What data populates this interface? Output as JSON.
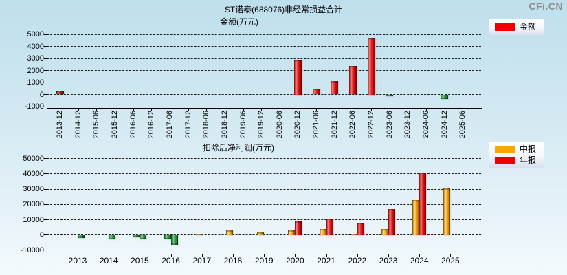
{
  "watermark": "CFi.CN",
  "chart_data": [
    {
      "type": "bar",
      "title": "ST诺泰(688076)非经常损益合计",
      "ylabel": "金额(万元)",
      "grid": true,
      "legend_position": "top-right",
      "legend": [
        {
          "label": "金额",
          "color": "#ee0000"
        }
      ],
      "ylim": [
        -1000,
        5000
      ],
      "ytick_step": 1000,
      "categories": [
        "2013-12",
        "2014-12",
        "2015-06",
        "2015-12",
        "2016-06",
        "2016-12",
        "2017-06",
        "2017-12",
        "2018-06",
        "2018-12",
        "2019-06",
        "2019-12",
        "2020-06",
        "2020-12",
        "2021-06",
        "2021-12",
        "2022-06",
        "2022-12",
        "2023-06",
        "2023-12",
        "2024-06",
        "2024-12",
        "2025-06"
      ],
      "series": [
        {
          "name": "金额",
          "color": "#ee0000",
          "values": [
            280,
            null,
            null,
            null,
            null,
            null,
            null,
            null,
            null,
            null,
            null,
            null,
            null,
            2900,
            460,
            1130,
            2380,
            4700,
            -150,
            null,
            null,
            -390,
            null
          ]
        }
      ],
      "negative_color": "#2f9e42"
    },
    {
      "type": "bar",
      "title": "扣除后净利润(万元)",
      "grid": true,
      "legend_position": "top-right",
      "legend": [
        {
          "label": "中报",
          "color": "#ffa500"
        },
        {
          "label": "年报",
          "color": "#ee0000"
        }
      ],
      "ylim": [
        -10000,
        50000
      ],
      "ytick_step": 10000,
      "categories": [
        "2013",
        "2014",
        "2015",
        "2016",
        "2017",
        "2018",
        "2019",
        "2020",
        "2021",
        "2022",
        "2023",
        "2024",
        "2025"
      ],
      "series": [
        {
          "name": "中报",
          "color": "#ffa500",
          "values": [
            null,
            null,
            -1500,
            -2700,
            600,
            3000,
            1800,
            2800,
            4000,
            800,
            3900,
            23000,
            30500
          ]
        },
        {
          "name": "年报",
          "color": "#ee0000",
          "values": [
            -2000,
            -3000,
            -3000,
            -6400,
            null,
            null,
            null,
            9000,
            10500,
            8100,
            16800,
            41000,
            null
          ]
        }
      ],
      "negative_color": "#2f9e42"
    }
  ]
}
